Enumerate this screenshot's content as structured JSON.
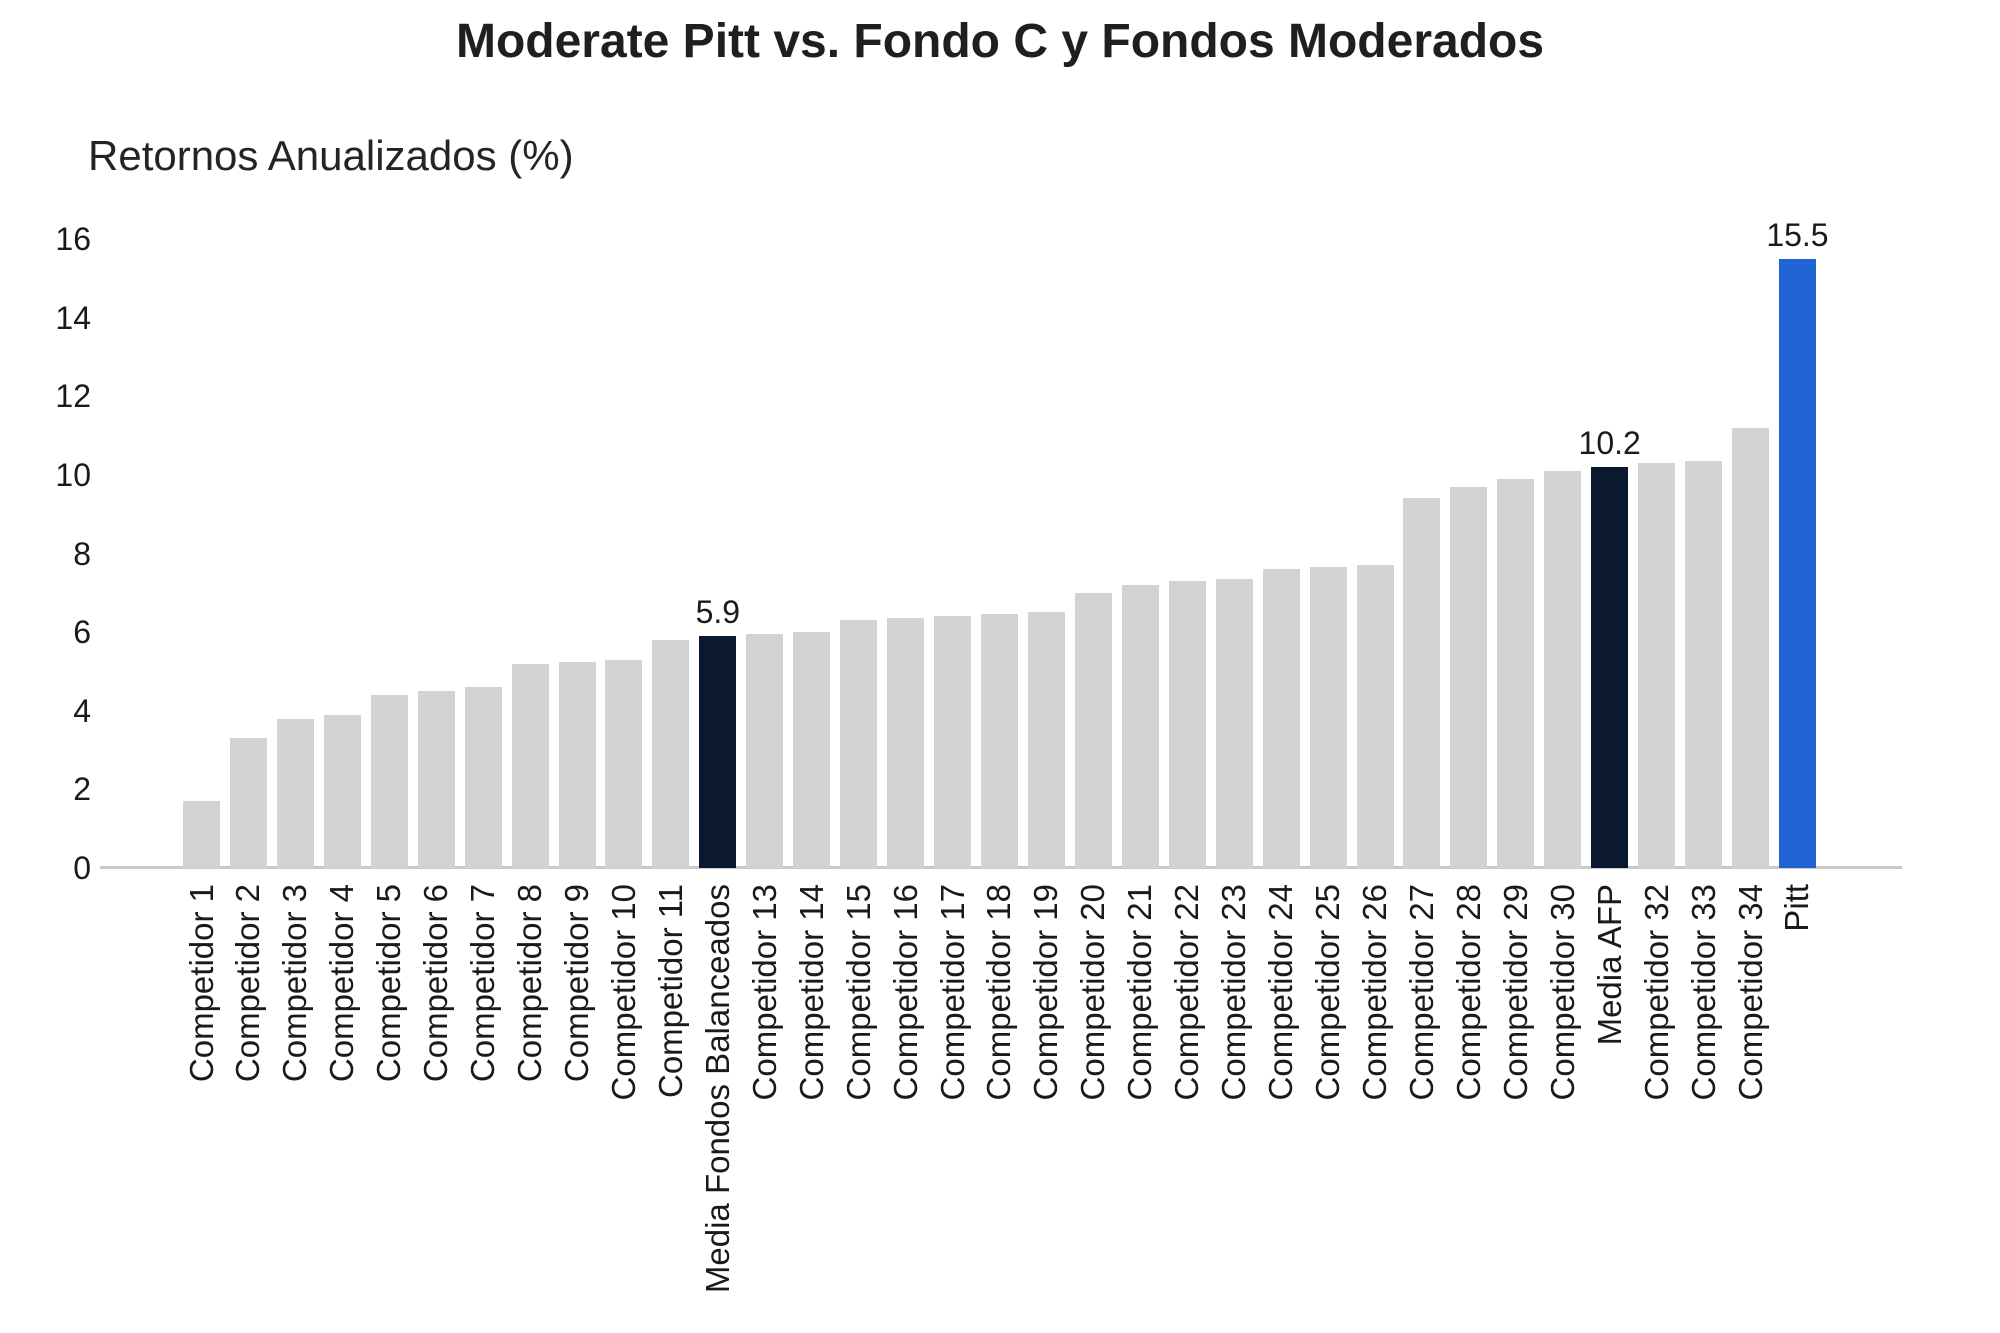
{
  "chart_data": {
    "type": "bar",
    "title": "Moderate Pitt vs. Fondo C y Fondos Moderados",
    "ylabel": "Retornos Anualizados (%)",
    "xlabel": "",
    "ylim": [
      0,
      16
    ],
    "yticks": [
      0,
      2,
      4,
      6,
      8,
      10,
      12,
      14,
      16
    ],
    "grid": false,
    "legend": "none",
    "categories": [
      "Competidor 1",
      "Competidor 2",
      "Competidor 3",
      "Competidor 4",
      "Competidor 5",
      "Competidor 6",
      "Competidor 7",
      "Competidor 8",
      "Competidor 9",
      "Competidor 10",
      "Competidor 11",
      "Media Fondos Balanceados",
      "Competidor 13",
      "Competidor 14",
      "Competidor 15",
      "Competidor 16",
      "Competidor 17",
      "Competidor 18",
      "Competidor 19",
      "Competidor 20",
      "Competidor 21",
      "Competidor 22",
      "Competidor 23",
      "Competidor 24",
      "Competidor 25",
      "Competidor 26",
      "Competidor 27",
      "Competidor 28",
      "Competidor 29",
      "Competidor 30",
      "Media AFP",
      "Competidor 32",
      "Competidor 33",
      "Competidor 34",
      "Pitt"
    ],
    "values": [
      1.7,
      3.3,
      3.8,
      3.9,
      4.4,
      4.5,
      4.6,
      5.2,
      5.25,
      5.3,
      5.8,
      5.9,
      5.95,
      6.0,
      6.3,
      6.35,
      6.4,
      6.45,
      6.5,
      7.0,
      7.2,
      7.3,
      7.35,
      7.6,
      7.65,
      7.7,
      9.4,
      9.7,
      9.9,
      10.1,
      10.2,
      10.3,
      10.35,
      11.2,
      15.5
    ],
    "bar_roles": [
      "competitor",
      "competitor",
      "competitor",
      "competitor",
      "competitor",
      "competitor",
      "competitor",
      "competitor",
      "competitor",
      "competitor",
      "competitor",
      "benchmark",
      "competitor",
      "competitor",
      "competitor",
      "competitor",
      "competitor",
      "competitor",
      "competitor",
      "competitor",
      "competitor",
      "competitor",
      "competitor",
      "competitor",
      "competitor",
      "competitor",
      "competitor",
      "competitor",
      "competitor",
      "competitor",
      "benchmark",
      "competitor",
      "competitor",
      "competitor",
      "highlight"
    ],
    "colors": {
      "competitor": "#d3d3d3",
      "benchmark": "#0a1930",
      "highlight": "#2263d3",
      "axis_line": "#c9c9c9",
      "text": "#1a1a1a"
    },
    "data_labels": [
      {
        "index": 11,
        "text": "5.9"
      },
      {
        "index": 30,
        "text": "10.2"
      },
      {
        "index": 34,
        "text": "15.5"
      }
    ]
  }
}
